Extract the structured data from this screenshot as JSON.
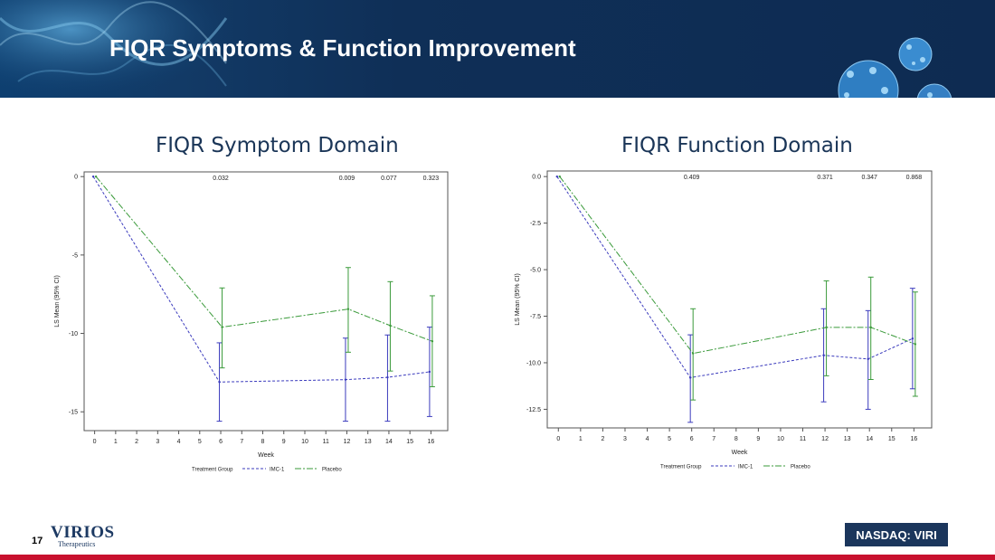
{
  "slide": {
    "title": "FIQR Symptoms & Function Improvement",
    "page_number": "17",
    "ticker": "NASDAQ: VIRI"
  },
  "logo": {
    "name": "VIRIOS",
    "sub": "Therapeutics"
  },
  "colors": {
    "banner": "#0f2f57",
    "imc1": "#3b3bbd",
    "placebo": "#3a9a3a",
    "heading": "#1a3557",
    "footer_bar": "#c8102e"
  },
  "chart_data": [
    {
      "type": "line",
      "heading": "FIQR Symptom Domain",
      "xlabel": "Week",
      "ylabel": "LS Mean (95% CI)",
      "xticks": [
        "0",
        "1",
        "2",
        "3",
        "4",
        "5",
        "6",
        "7",
        "8",
        "9",
        "10",
        "11",
        "12",
        "13",
        "14",
        "15",
        "16"
      ],
      "yticks": [
        "0",
        "-5",
        "-10",
        "-15"
      ],
      "xlim": [
        -0.5,
        16.8
      ],
      "ylim": [
        -16.2,
        0.3
      ],
      "p_values": [
        {
          "x": 6,
          "label": "0.032"
        },
        {
          "x": 12,
          "label": "0.009"
        },
        {
          "x": 14,
          "label": "0.077"
        },
        {
          "x": 16,
          "label": "0.323"
        }
      ],
      "legend_title": "Treatment Group",
      "series": [
        {
          "name": "IMC-1",
          "color": "#3b3bbd",
          "dash": "3,2",
          "x": [
            0,
            6,
            12,
            14,
            16
          ],
          "y": [
            0,
            -13.1,
            -12.95,
            -12.8,
            -12.45
          ],
          "ci_low": [
            null,
            -15.6,
            -15.6,
            -15.6,
            -15.3
          ],
          "ci_high": [
            null,
            -10.6,
            -10.3,
            -10.1,
            -9.6
          ]
        },
        {
          "name": "Placebo",
          "color": "#3a9a3a",
          "dash": "7,2,2,2",
          "x": [
            0,
            6,
            12,
            14,
            16
          ],
          "y": [
            0,
            -9.6,
            -8.45,
            -9.5,
            -10.5
          ],
          "ci_low": [
            null,
            -12.2,
            -11.2,
            -12.4,
            -13.4
          ],
          "ci_high": [
            null,
            -7.1,
            -5.8,
            -6.7,
            -7.6
          ]
        }
      ]
    },
    {
      "type": "line",
      "heading": "FIQR Function Domain",
      "xlabel": "Week",
      "ylabel": "LS Mean (95% CI)",
      "xticks": [
        "0",
        "1",
        "2",
        "3",
        "4",
        "5",
        "6",
        "7",
        "8",
        "9",
        "10",
        "11",
        "12",
        "13",
        "14",
        "15",
        "16"
      ],
      "yticks": [
        "0.0",
        "-2.5",
        "-5.0",
        "-7.5",
        "-10.0",
        "-12.5"
      ],
      "xlim": [
        -0.5,
        16.8
      ],
      "ylim": [
        -13.5,
        0.3
      ],
      "p_values": [
        {
          "x": 6,
          "label": "0.409"
        },
        {
          "x": 12,
          "label": "0.371"
        },
        {
          "x": 14,
          "label": "0.347"
        },
        {
          "x": 16,
          "label": "0.868"
        }
      ],
      "legend_title": "Treatment Group",
      "series": [
        {
          "name": "IMC-1",
          "color": "#3b3bbd",
          "dash": "3,2",
          "x": [
            0,
            6,
            12,
            14,
            16
          ],
          "y": [
            0,
            -10.8,
            -9.6,
            -9.8,
            -8.7
          ],
          "ci_low": [
            null,
            -13.2,
            -12.1,
            -12.5,
            -11.4
          ],
          "ci_high": [
            null,
            -8.5,
            -7.1,
            -7.2,
            -6.0
          ]
        },
        {
          "name": "Placebo",
          "color": "#3a9a3a",
          "dash": "7,2,2,2",
          "x": [
            0,
            6,
            12,
            14,
            16
          ],
          "y": [
            0,
            -9.5,
            -8.1,
            -8.1,
            -9.0
          ],
          "ci_low": [
            null,
            -12.0,
            -10.7,
            -10.9,
            -11.8
          ],
          "ci_high": [
            null,
            -7.1,
            -5.6,
            -5.4,
            -6.2
          ]
        }
      ]
    }
  ]
}
